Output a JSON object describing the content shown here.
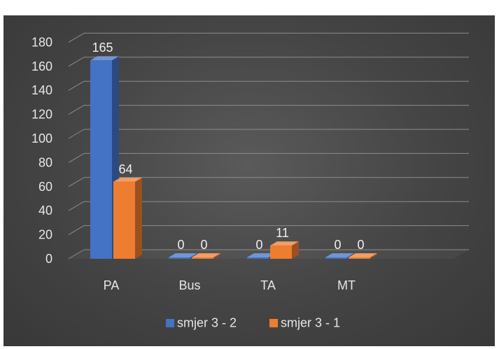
{
  "caption": {
    "text": "",
    "color": "#000000"
  },
  "chart_data": {
    "type": "bar",
    "categories": [
      "PA",
      "Bus",
      "TA",
      "MT"
    ],
    "series": [
      {
        "name": "smjer 3 - 2",
        "values": [
          165,
          0,
          0,
          0
        ],
        "color": "#4472C4"
      },
      {
        "name": "smjer 3 - 1",
        "values": [
          64,
          0,
          11,
          0
        ],
        "color": "#ED7D31"
      }
    ],
    "ylim": [
      0,
      180
    ],
    "yticks": [
      0,
      20,
      40,
      60,
      80,
      100,
      120,
      140,
      160,
      180
    ],
    "data_labels": true,
    "grid": true,
    "legend_position": "bottom",
    "style": "3d-clustered-column",
    "title": "",
    "xlabel": "",
    "ylabel": ""
  }
}
